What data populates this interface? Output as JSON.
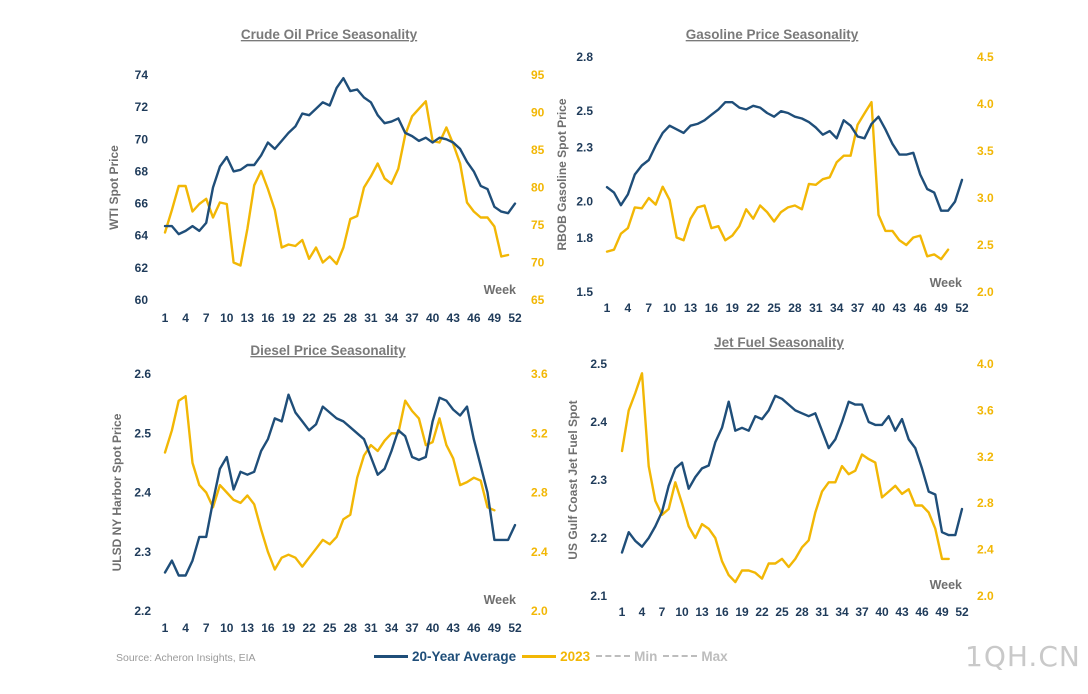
{
  "footer": {
    "source": "Source: Acheron Insights, EIA",
    "legend": {
      "avg": "20-Year Average",
      "y2023": "2023",
      "min": "Min",
      "max": "Max"
    },
    "watermark": "1QH.CN"
  },
  "colors": {
    "avg": "#1f4e79",
    "y2023": "#f2b705",
    "range": "#bdbdbd"
  },
  "chart_data": [
    {
      "type": "line",
      "title": "Crude Oil Price Seasonality",
      "ylabel": "WTI Spot Price",
      "xlabel": "Week",
      "x_ticks": [
        "1",
        "4",
        "7",
        "10",
        "13",
        "16",
        "19",
        "22",
        "25",
        "28",
        "31",
        "34",
        "37",
        "40",
        "43",
        "46",
        "49",
        "52"
      ],
      "ylim": [
        60,
        74
      ],
      "yticks": [
        "60",
        "62",
        "64",
        "66",
        "68",
        "70",
        "72",
        "74"
      ],
      "ylim2": [
        65,
        95
      ],
      "yticks2": [
        "65",
        "70",
        "75",
        "80",
        "85",
        "90",
        "95"
      ],
      "series": [
        {
          "name": "20-Year Average",
          "axis": "left",
          "values": [
            64.6,
            64.6,
            64.1,
            64.3,
            64.6,
            64.3,
            64.8,
            67.0,
            68.3,
            68.9,
            68.0,
            68.1,
            68.4,
            68.4,
            69.0,
            69.8,
            69.4,
            69.9,
            70.4,
            70.8,
            71.6,
            71.5,
            71.9,
            72.3,
            72.1,
            73.2,
            73.8,
            73.0,
            73.1,
            72.6,
            72.3,
            71.5,
            71.0,
            71.1,
            71.3,
            70.4,
            70.2,
            69.9,
            70.1,
            69.8,
            70.1,
            70.0,
            69.8,
            69.4,
            68.6,
            68.0,
            67.1,
            66.9,
            65.8,
            65.5,
            65.4,
            66.0
          ]
        },
        {
          "name": "2023",
          "axis": "right",
          "values": [
            74.0,
            77.0,
            80.2,
            80.2,
            76.8,
            77.8,
            78.5,
            76.0,
            78.0,
            77.8,
            70.0,
            69.6,
            74.5,
            80.3,
            82.2,
            79.8,
            77.0,
            72.0,
            72.4,
            72.2,
            73.0,
            70.5,
            72.0,
            70.0,
            70.8,
            69.8,
            72.0,
            75.8,
            76.2,
            80.0,
            81.5,
            83.2,
            81.2,
            80.5,
            82.5,
            87.0,
            89.5,
            90.5,
            91.5,
            86.2,
            86.0,
            88.0,
            85.8,
            83.2,
            78.0,
            76.8,
            76.0,
            76.0,
            74.8,
            70.8,
            71.0
          ]
        }
      ]
    },
    {
      "type": "line",
      "title": "Gasoline Price Seasonality",
      "ylabel": "RBOB Gasoline Spot Price",
      "xlabel": "Week",
      "x_ticks": [
        "1",
        "4",
        "7",
        "10",
        "13",
        "16",
        "19",
        "22",
        "25",
        "28",
        "31",
        "34",
        "37",
        "40",
        "43",
        "46",
        "49",
        "52"
      ],
      "ylim": [
        1.5,
        2.8
      ],
      "yticks": [
        "1.5",
        "1.8",
        "2.0",
        "2.3",
        "2.5",
        "2.8"
      ],
      "ylim2": [
        2.0,
        4.5
      ],
      "yticks2": [
        "2.0",
        "2.5",
        "3.0",
        "3.5",
        "4.0",
        "4.5"
      ],
      "series": [
        {
          "name": "20-Year Average",
          "axis": "left",
          "values": [
            2.08,
            2.05,
            1.98,
            2.04,
            2.15,
            2.2,
            2.23,
            2.31,
            2.38,
            2.42,
            2.4,
            2.38,
            2.42,
            2.43,
            2.45,
            2.48,
            2.51,
            2.55,
            2.55,
            2.52,
            2.51,
            2.53,
            2.52,
            2.49,
            2.47,
            2.5,
            2.49,
            2.47,
            2.46,
            2.44,
            2.41,
            2.37,
            2.39,
            2.35,
            2.45,
            2.42,
            2.36,
            2.35,
            2.43,
            2.47,
            2.4,
            2.32,
            2.26,
            2.26,
            2.27,
            2.15,
            2.07,
            2.05,
            1.95,
            1.95,
            2.0,
            2.12
          ]
        },
        {
          "name": "2023",
          "axis": "right",
          "values": [
            2.43,
            2.45,
            2.62,
            2.68,
            2.9,
            2.89,
            3.0,
            2.93,
            3.12,
            2.98,
            2.58,
            2.55,
            2.78,
            2.9,
            2.92,
            2.68,
            2.7,
            2.55,
            2.6,
            2.7,
            2.88,
            2.78,
            2.92,
            2.85,
            2.75,
            2.85,
            2.9,
            2.92,
            2.88,
            3.15,
            3.14,
            3.2,
            3.22,
            3.38,
            3.45,
            3.45,
            3.78,
            3.9,
            4.02,
            2.82,
            2.65,
            2.65,
            2.55,
            2.5,
            2.58,
            2.6,
            2.38,
            2.4,
            2.35,
            2.45
          ]
        }
      ]
    },
    {
      "type": "line",
      "title": "Diesel Price Seasonality",
      "ylabel": "ULSD NY Harbor Spot Price",
      "xlabel": "Week",
      "x_ticks": [
        "1",
        "4",
        "7",
        "10",
        "13",
        "16",
        "19",
        "22",
        "25",
        "28",
        "31",
        "34",
        "37",
        "40",
        "43",
        "46",
        "49",
        "52"
      ],
      "ylim": [
        2.2,
        2.6
      ],
      "yticks": [
        "2.2",
        "2.3",
        "2.4",
        "2.5",
        "2.6"
      ],
      "ylim2": [
        2.0,
        3.6
      ],
      "yticks2": [
        "2.0",
        "2.4",
        "2.8",
        "3.2",
        "3.6"
      ],
      "series": [
        {
          "name": "20-Year Average",
          "axis": "left",
          "values": [
            2.265,
            2.285,
            2.26,
            2.26,
            2.285,
            2.325,
            2.325,
            2.385,
            2.44,
            2.46,
            2.405,
            2.435,
            2.43,
            2.435,
            2.47,
            2.49,
            2.525,
            2.52,
            2.565,
            2.535,
            2.52,
            2.505,
            2.515,
            2.545,
            2.535,
            2.525,
            2.52,
            2.51,
            2.5,
            2.49,
            2.46,
            2.43,
            2.44,
            2.47,
            2.505,
            2.495,
            2.46,
            2.455,
            2.46,
            2.52,
            2.56,
            2.555,
            2.54,
            2.53,
            2.545,
            2.49,
            2.445,
            2.4,
            2.32,
            2.32,
            2.32,
            2.345
          ]
        },
        {
          "name": "2023",
          "axis": "right",
          "values": [
            3.07,
            3.22,
            3.42,
            3.45,
            3.0,
            2.85,
            2.8,
            2.7,
            2.85,
            2.8,
            2.75,
            2.73,
            2.78,
            2.72,
            2.55,
            2.4,
            2.28,
            2.36,
            2.38,
            2.36,
            2.3,
            2.36,
            2.42,
            2.48,
            2.45,
            2.5,
            2.62,
            2.65,
            2.9,
            3.05,
            3.12,
            3.08,
            3.15,
            3.2,
            3.2,
            3.42,
            3.35,
            3.3,
            3.12,
            3.14,
            3.3,
            3.12,
            3.03,
            2.85,
            2.87,
            2.9,
            2.88,
            2.7,
            2.68
          ]
        }
      ]
    },
    {
      "type": "line",
      "title": "Jet Fuel Seasonality",
      "ylabel": "US Gulf Coast Jet Fuel Spot",
      "xlabel": "Week",
      "x_ticks": [
        "1",
        "4",
        "7",
        "10",
        "13",
        "16",
        "19",
        "22",
        "25",
        "28",
        "31",
        "34",
        "37",
        "40",
        "43",
        "46",
        "49",
        "52"
      ],
      "ylim": [
        2.1,
        2.5
      ],
      "yticks": [
        "2.1",
        "2.2",
        "2.3",
        "2.4",
        "2.5"
      ],
      "ylim2": [
        2.0,
        4.0
      ],
      "yticks2": [
        "2.0",
        "2.4",
        "2.8",
        "3.2",
        "3.6",
        "4.0"
      ],
      "series": [
        {
          "name": "20-Year Average",
          "axis": "left",
          "values": [
            2.175,
            2.21,
            2.195,
            2.185,
            2.2,
            2.22,
            2.245,
            2.29,
            2.32,
            2.33,
            2.285,
            2.305,
            2.32,
            2.325,
            2.365,
            2.39,
            2.435,
            2.385,
            2.39,
            2.385,
            2.41,
            2.405,
            2.42,
            2.445,
            2.44,
            2.43,
            2.42,
            2.415,
            2.41,
            2.415,
            2.385,
            2.355,
            2.37,
            2.4,
            2.435,
            2.43,
            2.43,
            2.4,
            2.395,
            2.395,
            2.41,
            2.385,
            2.405,
            2.37,
            2.355,
            2.32,
            2.28,
            2.275,
            2.21,
            2.205,
            2.205,
            2.25
          ]
        },
        {
          "name": "2023",
          "axis": "right",
          "values": [
            3.25,
            3.6,
            3.75,
            3.92,
            3.12,
            2.82,
            2.7,
            2.75,
            2.98,
            2.8,
            2.6,
            2.5,
            2.62,
            2.58,
            2.5,
            2.3,
            2.18,
            2.12,
            2.22,
            2.22,
            2.2,
            2.15,
            2.28,
            2.28,
            2.32,
            2.25,
            2.32,
            2.42,
            2.48,
            2.72,
            2.9,
            2.98,
            2.98,
            3.12,
            3.05,
            3.08,
            3.22,
            3.18,
            3.15,
            2.85,
            2.9,
            2.95,
            2.88,
            2.92,
            2.78,
            2.78,
            2.72,
            2.58,
            2.32,
            2.32
          ]
        }
      ]
    }
  ]
}
